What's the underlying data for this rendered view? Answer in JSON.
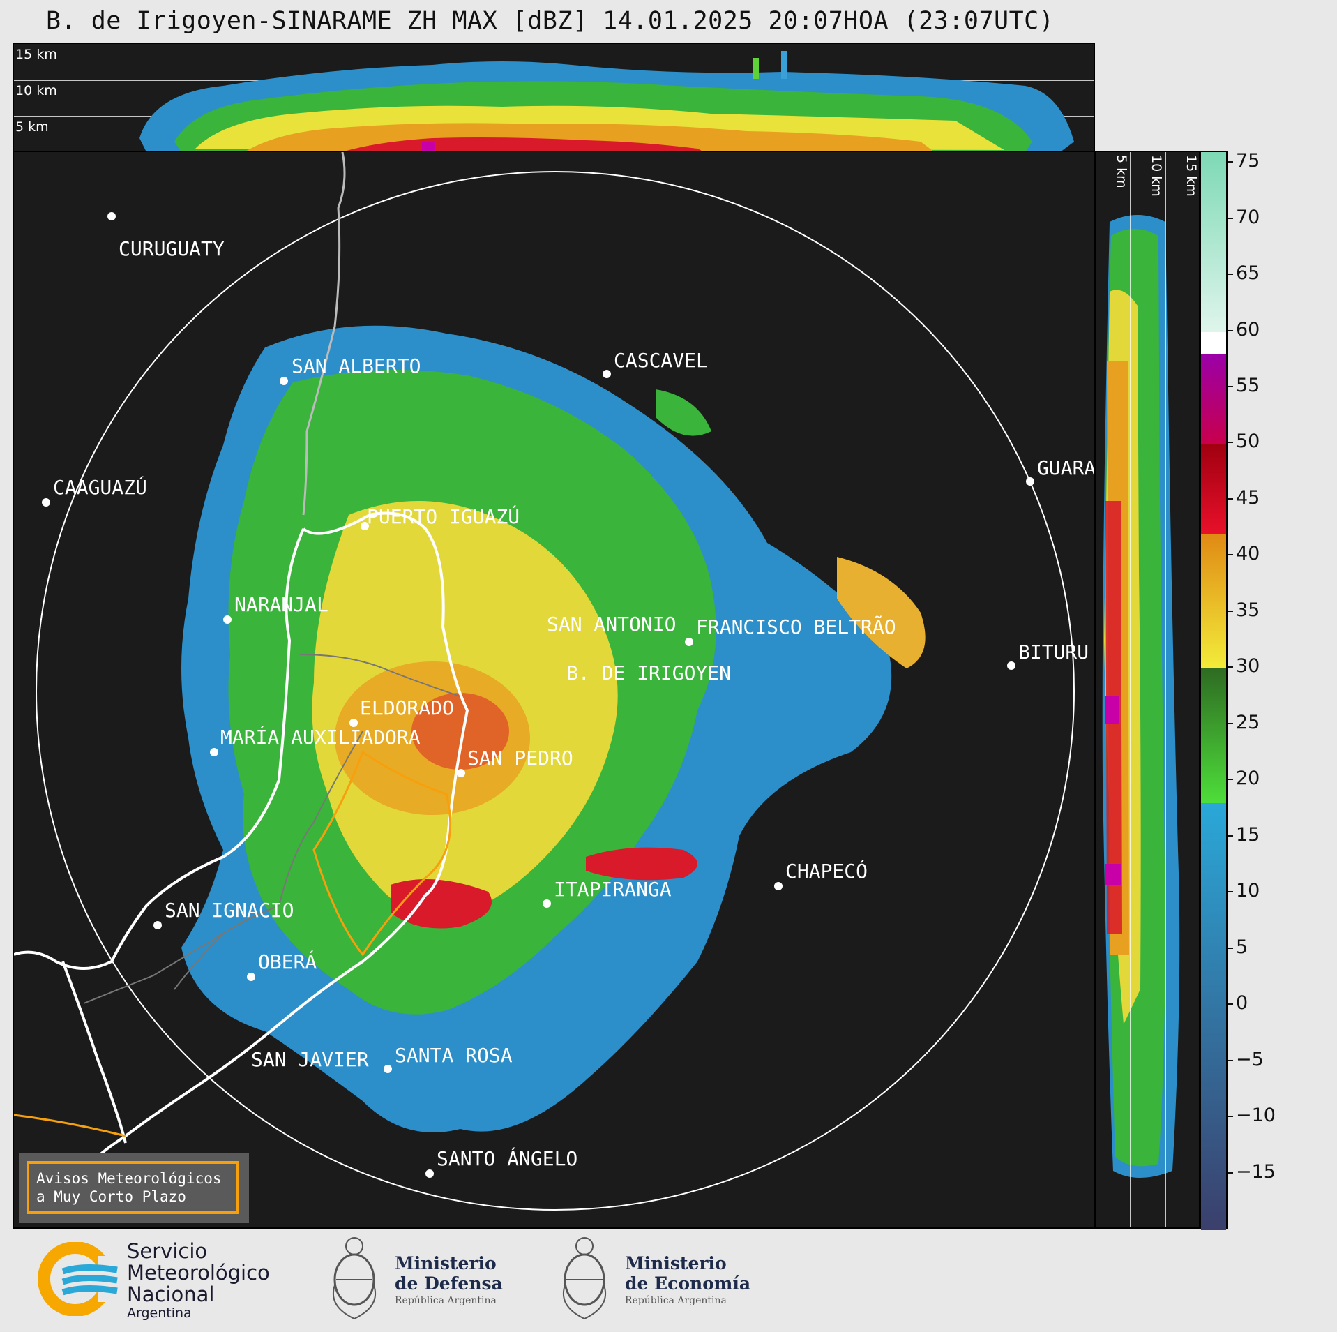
{
  "title": "B. de Irigoyen-SINARAME ZH MAX [dBZ] 14.01.2025 20:07HOA (23:07UTC)",
  "top_panel": {
    "height_labels": [
      "15 km",
      "10 km",
      "5 km"
    ]
  },
  "side_panel": {
    "height_labels": [
      "5 km",
      "10 km",
      "15 km"
    ]
  },
  "colorbar": {
    "unit": "dBZ",
    "tick_labels": [
      "75",
      "70",
      "65",
      "60",
      "55",
      "50",
      "45",
      "40",
      "35",
      "30",
      "25",
      "20",
      "15",
      "10",
      "5",
      "0",
      "−5",
      "−10",
      "−15"
    ],
    "min": -20,
    "max": 76,
    "bands": [
      {
        "from": -20,
        "to": 18,
        "color_low": "#3b3f6b",
        "color_high": "#2aa8d8"
      },
      {
        "from": 18,
        "to": 30,
        "color_low": "#4ede3a",
        "color_high": "#2e6b22"
      },
      {
        "from": 30,
        "to": 42,
        "color_low": "#f2ec3a",
        "color_high": "#e08a14"
      },
      {
        "from": 42,
        "to": 50,
        "color_low": "#e8102a",
        "color_high": "#a00010"
      },
      {
        "from": 50,
        "to": 58,
        "color_low": "#c8004c",
        "color_high": "#9b00a8"
      },
      {
        "from": 58,
        "to": 60,
        "color_low": "#ffffff",
        "color_high": "#ffffff"
      },
      {
        "from": 60,
        "to": 76,
        "color_low": "#dff5ec",
        "color_high": "#7dd9b5"
      }
    ]
  },
  "map": {
    "cities": [
      {
        "name": "CURUGUATY"
      },
      {
        "name": "SAN ALBERTO"
      },
      {
        "name": "CASCAVEL"
      },
      {
        "name": "CAAGUAZÚ"
      },
      {
        "name": "GUARA"
      },
      {
        "name": "PUERTO IGUAZÚ"
      },
      {
        "name": "NARANJAL"
      },
      {
        "name": "SAN ANTONIO"
      },
      {
        "name": "FRANCISCO BELTRÃO"
      },
      {
        "name": "BITURU"
      },
      {
        "name": "B. DE IRIGOYEN"
      },
      {
        "name": "ELDORADO"
      },
      {
        "name": "MARÍA AUXILIADORA"
      },
      {
        "name": "SAN PEDRO"
      },
      {
        "name": "CHAPECÓ"
      },
      {
        "name": "ITAPIRANGA"
      },
      {
        "name": "SAN IGNACIO"
      },
      {
        "name": "OBERÁ"
      },
      {
        "name": "SAN JAVIER"
      },
      {
        "name": "SANTA ROSA"
      },
      {
        "name": "SANTO ÁNGELO"
      }
    ],
    "warning_box": {
      "line1": "Avisos Meteorológicos",
      "line2": "a Muy Corto Plazo"
    }
  },
  "logos": {
    "smn": {
      "line1": "Servicio",
      "line2": "Meteorológico",
      "line3": "Nacional",
      "line4": "Argentina"
    },
    "defensa": {
      "line1": "Ministerio",
      "line2": "de Defensa",
      "line3": "República Argentina"
    },
    "economia": {
      "line1": "Ministerio",
      "line2": "de Economía",
      "line3": "República Argentina"
    }
  }
}
